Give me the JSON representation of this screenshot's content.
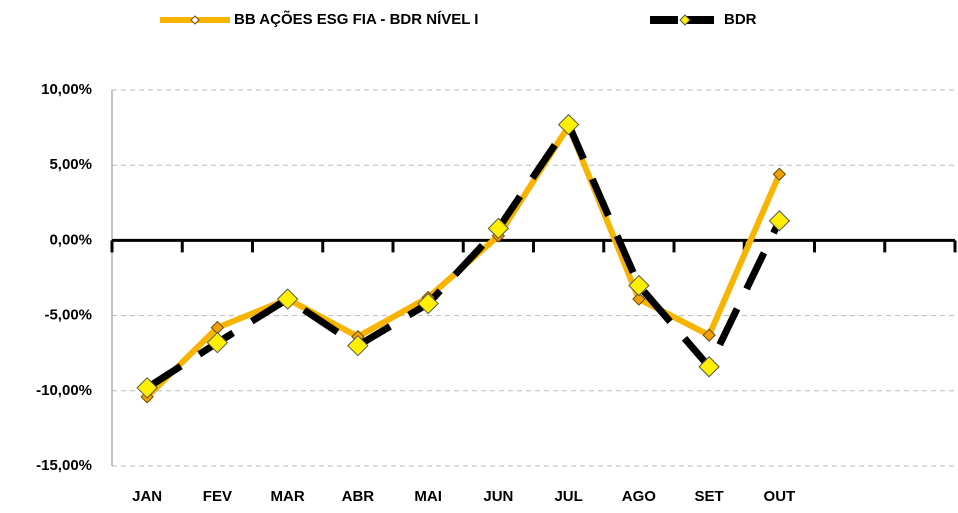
{
  "chart_data": {
    "type": "line",
    "categories": [
      "JAN",
      "FEV",
      "MAR",
      "ABR",
      "MAI",
      "JUN",
      "JUL",
      "AGO",
      "SET",
      "OUT",
      null,
      null
    ],
    "series": [
      {
        "name": "BB AÇÕES ESG FIA - BDR NÍVEL I",
        "color": "#f7b500",
        "values": [
          -10.4,
          -5.8,
          -3.9,
          -6.4,
          -3.8,
          0.3,
          7.6,
          -3.9,
          -6.3,
          4.4,
          null,
          null
        ]
      },
      {
        "name": "BDR",
        "color": "#000000",
        "values": [
          -9.8,
          -6.8,
          -3.9,
          -7.0,
          -4.2,
          0.8,
          7.7,
          -3.0,
          -8.4,
          1.3,
          null,
          null
        ]
      }
    ],
    "ylim": [
      -15,
      10
    ],
    "yticks": [
      {
        "value": -15,
        "label": "-15,00%"
      },
      {
        "value": -10,
        "label": "-10,00%"
      },
      {
        "value": -5,
        "label": "-5,00%"
      },
      {
        "value": 0,
        "label": "0,00%"
      },
      {
        "value": 5,
        "label": "5,00%"
      },
      {
        "value": 10,
        "label": "10,00%"
      }
    ],
    "grid": true,
    "legend": "top"
  }
}
